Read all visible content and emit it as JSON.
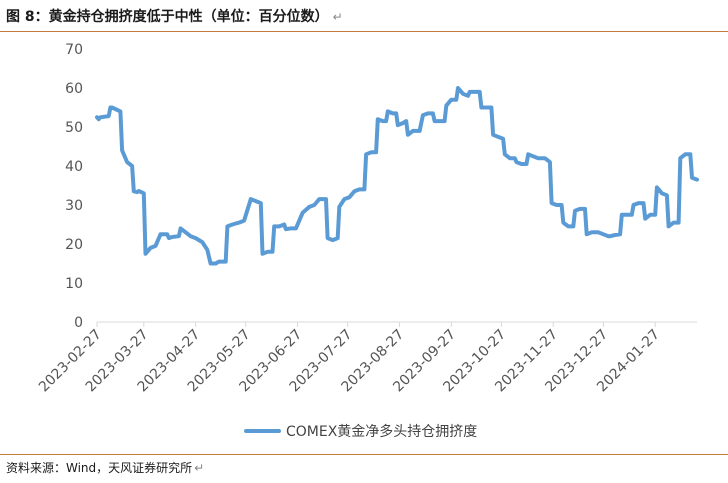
{
  "header": {
    "title": "图 8：黄金持仓拥挤度低于中性（单位：百分位数）",
    "return_mark": "↵"
  },
  "footer": {
    "source": "资料来源：Wind，天风证券研究所",
    "return_mark": "↵"
  },
  "colors": {
    "series": "#5b9bd5",
    "axis": "#d9d9d9",
    "rule": "#c07a3a"
  },
  "chart_data": {
    "type": "line",
    "title": "",
    "xlabel": "",
    "ylabel": "",
    "ylim": [
      0,
      70
    ],
    "yticks": [
      0,
      10,
      20,
      30,
      40,
      50,
      60,
      70
    ],
    "xlim": [
      "2023-02-27",
      "2024-02-21"
    ],
    "xticks": [
      "2023-02-27",
      "2023-03-27",
      "2023-04-27",
      "2023-05-27",
      "2023-06-27",
      "2023-07-27",
      "2023-08-27",
      "2023-09-27",
      "2023-10-27",
      "2023-11-27",
      "2023-12-27",
      "2024-01-27"
    ],
    "grid": false,
    "legend": "bottom",
    "series": [
      {
        "name": "COMEX黄金净多头持仓拥挤度",
        "points": [
          [
            "2023-02-27",
            52.5
          ],
          [
            "2023-02-28",
            52.0
          ],
          [
            "2023-03-01",
            52.5
          ],
          [
            "2023-03-06",
            52.8
          ],
          [
            "2023-03-07",
            55.0
          ],
          [
            "2023-03-08",
            55.0
          ],
          [
            "2023-03-13",
            54.0
          ],
          [
            "2023-03-14",
            44.0
          ],
          [
            "2023-03-17",
            41.0
          ],
          [
            "2023-03-20",
            40.0
          ],
          [
            "2023-03-21",
            33.5
          ],
          [
            "2023-03-23",
            33.3
          ],
          [
            "2023-03-24",
            33.6
          ],
          [
            "2023-03-27",
            33.0
          ],
          [
            "2023-03-28",
            17.5
          ],
          [
            "2023-03-31",
            19.0
          ],
          [
            "2023-04-03",
            19.5
          ],
          [
            "2023-04-06",
            22.5
          ],
          [
            "2023-04-10",
            22.5
          ],
          [
            "2023-04-11",
            21.5
          ],
          [
            "2023-04-13",
            21.8
          ],
          [
            "2023-04-17",
            22.0
          ],
          [
            "2023-04-18",
            24.0
          ],
          [
            "2023-04-21",
            23.0
          ],
          [
            "2023-04-24",
            22.0
          ],
          [
            "2023-04-27",
            21.5
          ],
          [
            "2023-05-01",
            20.5
          ],
          [
            "2023-05-04",
            18.5
          ],
          [
            "2023-05-06",
            15.0
          ],
          [
            "2023-05-09",
            15.0
          ],
          [
            "2023-05-11",
            15.5
          ],
          [
            "2023-05-15",
            15.5
          ],
          [
            "2023-05-16",
            24.5
          ],
          [
            "2023-05-19",
            25.0
          ],
          [
            "2023-05-23",
            25.5
          ],
          [
            "2023-05-26",
            26.0
          ],
          [
            "2023-05-30",
            31.5
          ],
          [
            "2023-06-02",
            31.0
          ],
          [
            "2023-06-05",
            30.5
          ],
          [
            "2023-06-06",
            17.5
          ],
          [
            "2023-06-09",
            18.0
          ],
          [
            "2023-06-12",
            18.0
          ],
          [
            "2023-06-13",
            24.5
          ],
          [
            "2023-06-16",
            24.5
          ],
          [
            "2023-06-19",
            25.0
          ],
          [
            "2023-06-20",
            23.8
          ],
          [
            "2023-06-23",
            24.0
          ],
          [
            "2023-06-26",
            24.0
          ],
          [
            "2023-06-30",
            28.0
          ],
          [
            "2023-07-04",
            29.5
          ],
          [
            "2023-07-07",
            30.0
          ],
          [
            "2023-07-10",
            31.5
          ],
          [
            "2023-07-14",
            31.5
          ],
          [
            "2023-07-15",
            21.5
          ],
          [
            "2023-07-18",
            21.0
          ],
          [
            "2023-07-21",
            21.5
          ],
          [
            "2023-07-22",
            29.5
          ],
          [
            "2023-07-25",
            31.5
          ],
          [
            "2023-07-28",
            32.0
          ],
          [
            "2023-07-31",
            33.5
          ],
          [
            "2023-08-03",
            34.0
          ],
          [
            "2023-08-06",
            34.0
          ],
          [
            "2023-08-07",
            43.0
          ],
          [
            "2023-08-10",
            43.5
          ],
          [
            "2023-08-13",
            43.5
          ],
          [
            "2023-08-14",
            52.0
          ],
          [
            "2023-08-17",
            51.5
          ],
          [
            "2023-08-19",
            51.5
          ],
          [
            "2023-08-20",
            54.0
          ],
          [
            "2023-08-23",
            53.5
          ],
          [
            "2023-08-25",
            53.5
          ],
          [
            "2023-08-26",
            50.5
          ],
          [
            "2023-08-29",
            51.0
          ],
          [
            "2023-08-31",
            51.5
          ],
          [
            "2023-09-01",
            48.0
          ],
          [
            "2023-09-04",
            49.0
          ],
          [
            "2023-09-08",
            49.0
          ],
          [
            "2023-09-10",
            53.0
          ],
          [
            "2023-09-13",
            53.5
          ],
          [
            "2023-09-16",
            53.5
          ],
          [
            "2023-09-17",
            51.5
          ],
          [
            "2023-09-20",
            51.5
          ],
          [
            "2023-09-23",
            51.5
          ],
          [
            "2023-09-24",
            55.5
          ],
          [
            "2023-09-27",
            57.0
          ],
          [
            "2023-09-30",
            57.0
          ],
          [
            "2023-10-01",
            60.0
          ],
          [
            "2023-10-04",
            58.5
          ],
          [
            "2023-10-07",
            58.0
          ],
          [
            "2023-10-08",
            59.0
          ],
          [
            "2023-10-11",
            59.0
          ],
          [
            "2023-10-14",
            59.0
          ],
          [
            "2023-10-15",
            55.0
          ],
          [
            "2023-10-18",
            55.0
          ],
          [
            "2023-10-21",
            55.0
          ],
          [
            "2023-10-22",
            48.0
          ],
          [
            "2023-10-25",
            47.5
          ],
          [
            "2023-10-28",
            47.0
          ],
          [
            "2023-10-29",
            43.0
          ],
          [
            "2023-11-01",
            42.0
          ],
          [
            "2023-11-04",
            42.0
          ],
          [
            "2023-11-05",
            41.0
          ],
          [
            "2023-11-08",
            40.5
          ],
          [
            "2023-11-11",
            40.5
          ],
          [
            "2023-11-12",
            43.0
          ],
          [
            "2023-11-15",
            42.5
          ],
          [
            "2023-11-18",
            42.0
          ],
          [
            "2023-11-19",
            42.0
          ],
          [
            "2023-11-22",
            42.0
          ],
          [
            "2023-11-25",
            41.0
          ],
          [
            "2023-11-26",
            30.5
          ],
          [
            "2023-11-29",
            30.0
          ],
          [
            "2023-12-02",
            30.0
          ],
          [
            "2023-12-03",
            25.5
          ],
          [
            "2023-12-06",
            24.5
          ],
          [
            "2023-12-09",
            24.5
          ],
          [
            "2023-12-10",
            28.5
          ],
          [
            "2023-12-13",
            29.0
          ],
          [
            "2023-12-16",
            29.0
          ],
          [
            "2023-12-17",
            22.5
          ],
          [
            "2023-12-20",
            23.0
          ],
          [
            "2023-12-23",
            23.0
          ],
          [
            "2023-12-24",
            23.0
          ],
          [
            "2023-12-27",
            22.5
          ],
          [
            "2023-12-30",
            22.0
          ],
          [
            "2023-12-31",
            22.0
          ],
          [
            "2024-01-03",
            22.3
          ],
          [
            "2024-01-06",
            22.5
          ],
          [
            "2024-01-07",
            27.5
          ],
          [
            "2024-01-10",
            27.5
          ],
          [
            "2024-01-13",
            27.5
          ],
          [
            "2024-01-14",
            30.0
          ],
          [
            "2024-01-17",
            30.5
          ],
          [
            "2024-01-20",
            30.5
          ],
          [
            "2024-01-21",
            26.5
          ],
          [
            "2024-01-24",
            27.5
          ],
          [
            "2024-01-27",
            27.5
          ],
          [
            "2024-01-28",
            34.5
          ],
          [
            "2024-01-31",
            33.0
          ],
          [
            "2024-02-03",
            32.5
          ],
          [
            "2024-02-04",
            24.5
          ],
          [
            "2024-02-07",
            25.5
          ],
          [
            "2024-02-10",
            25.5
          ],
          [
            "2024-02-11",
            42.0
          ],
          [
            "2024-02-14",
            43.0
          ],
          [
            "2024-02-17",
            43.0
          ],
          [
            "2024-02-18",
            37.0
          ],
          [
            "2024-02-21",
            36.5
          ]
        ]
      }
    ]
  }
}
